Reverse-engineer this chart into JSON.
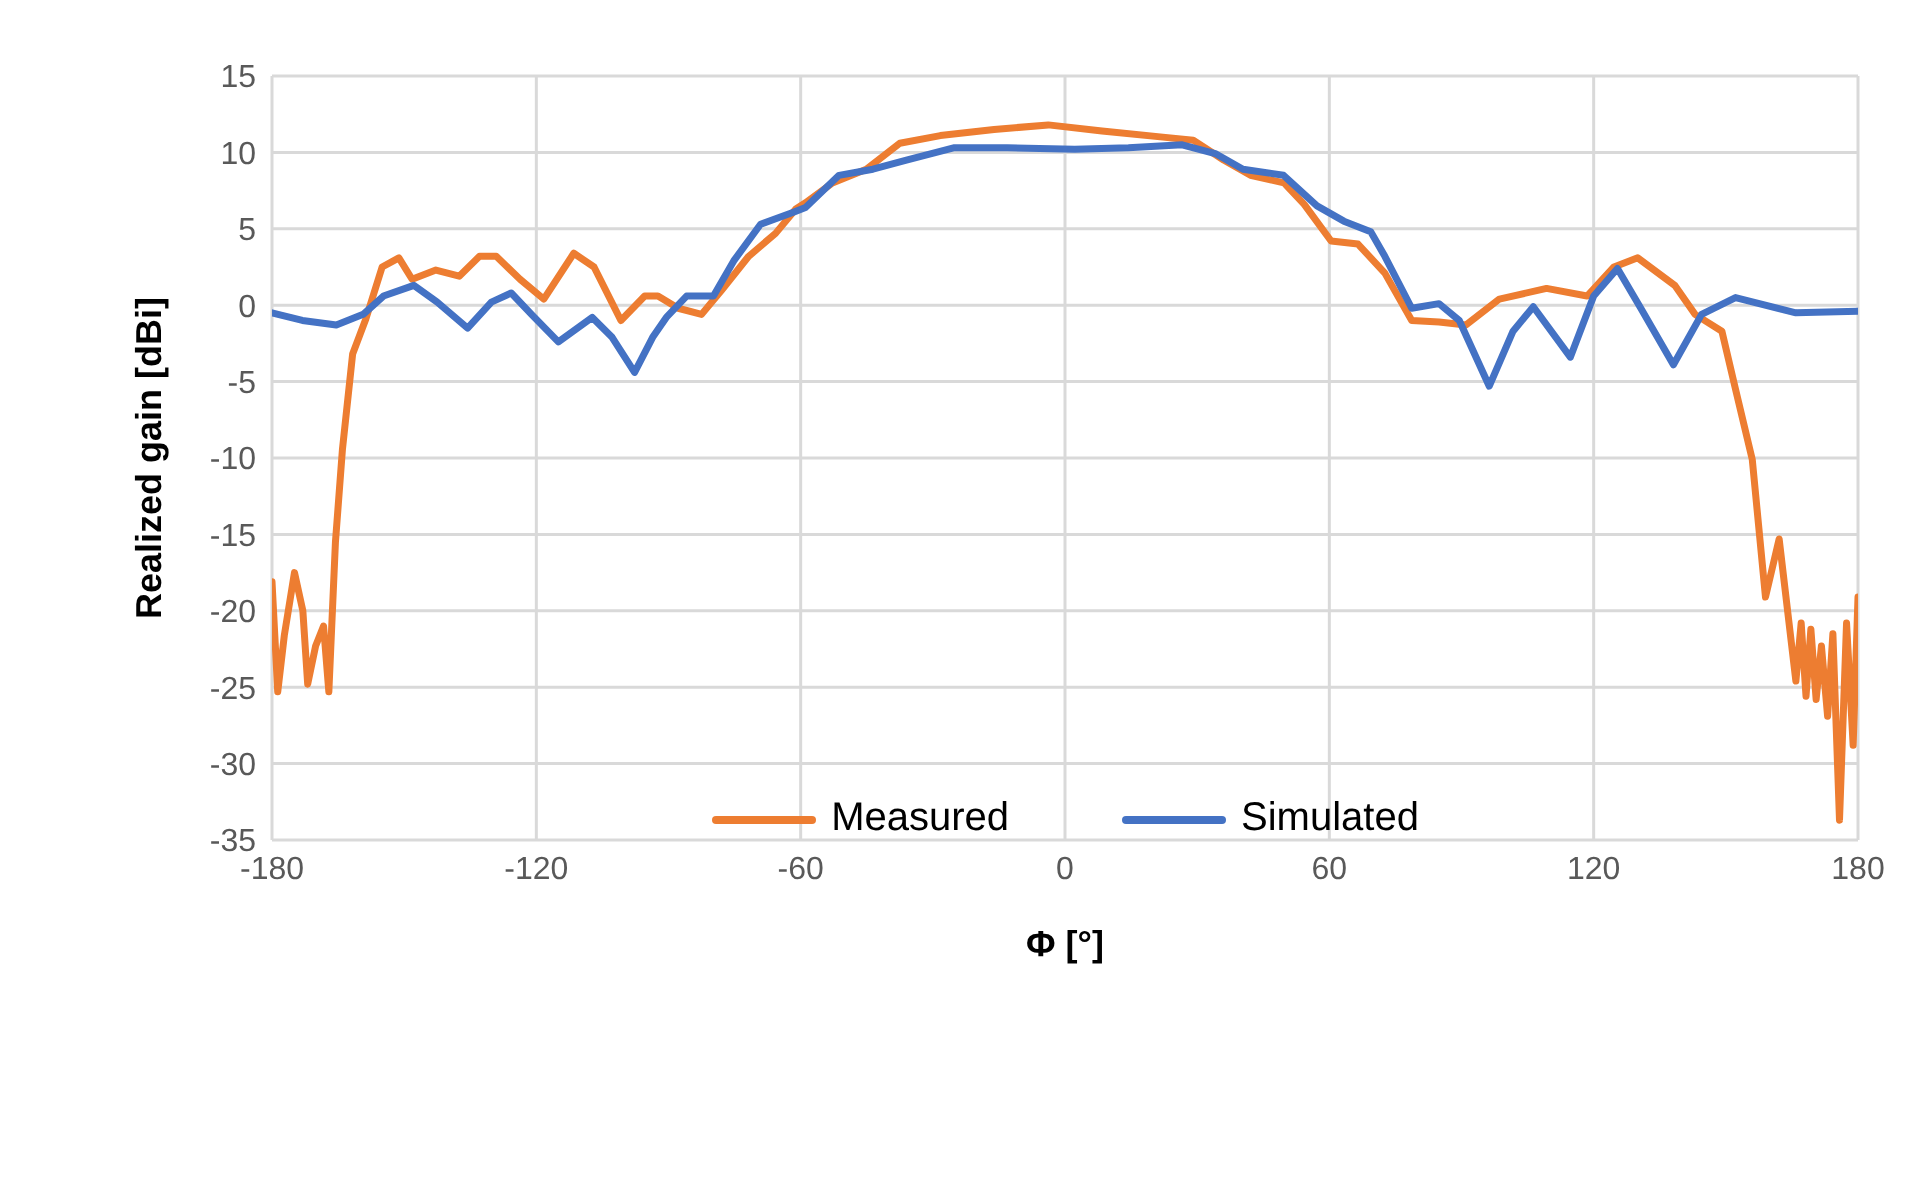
{
  "chart_data": {
    "type": "line",
    "xlabel": "Φ [°]",
    "ylabel": "Realized gain [dBi]",
    "xlim": [
      -180,
      180
    ],
    "xticks": [
      -180,
      -120,
      -60,
      0,
      60,
      120,
      180
    ],
    "ylim": [
      -35,
      15
    ],
    "yticks": [
      -35,
      -30,
      -25,
      -20,
      -15,
      -10,
      -5,
      0,
      5,
      10,
      15
    ],
    "grid": true,
    "legend": "bottom",
    "marker": "none",
    "line_style": "solid",
    "series": [
      {
        "name": "Measured",
        "color": "#ed7d31",
        "x": [
          -180,
          -178.7,
          -177.2,
          -174.9,
          -173,
          -171.9,
          -170.1,
          -168.3,
          -167.1,
          -165.6,
          -164,
          -161.7,
          -158.7,
          -155,
          -151.2,
          -148.2,
          -142.8,
          -137.5,
          -132.9,
          -129.1,
          -123.7,
          -118.3,
          -111.5,
          -106.9,
          -100.8,
          -95.4,
          -92.4,
          -87.8,
          -82.5,
          -77.9,
          -71.8,
          -65.7,
          -61.1,
          -58.9,
          -52.8,
          -45.1,
          -37.5,
          -28.3,
          -16.1,
          -3.8,
          8.4,
          22.2,
          29.1,
          36,
          42.1,
          49.7,
          54.3,
          60.4,
          66.5,
          72.6,
          78.7,
          84.9,
          91,
          98.6,
          109.3,
          118.5,
          124.6,
          130,
          138.4,
          143,
          149.1,
          152.2,
          156,
          159,
          162.1,
          165.9,
          167.1,
          168.2,
          169.3,
          170.5,
          171.7,
          173.1,
          174.3,
          175.8,
          177.4,
          178.9,
          180
        ],
        "values": [
          -18.1,
          -25.3,
          -21.6,
          -17.5,
          -20,
          -24.8,
          -22.3,
          -21,
          -25.3,
          -15.5,
          -9.4,
          -3.2,
          -0.9,
          2.5,
          3.1,
          1.7,
          2.3,
          1.9,
          3.2,
          3.2,
          1.7,
          0.4,
          3.4,
          2.5,
          -1,
          0.6,
          0.6,
          -0.2,
          -0.6,
          1,
          3.2,
          4.7,
          6.3,
          6.7,
          8,
          8.9,
          10.6,
          11.1,
          11.5,
          11.8,
          11.4,
          11,
          10.8,
          9.5,
          8.5,
          8,
          6.6,
          4.2,
          4,
          2.1,
          -1,
          -1.1,
          -1.3,
          0.4,
          1.1,
          0.6,
          2.5,
          3.1,
          1.3,
          -0.6,
          -1.7,
          -5.5,
          -10.1,
          -19.1,
          -15.3,
          -24.6,
          -20.8,
          -25.6,
          -21.2,
          -25.8,
          -22.3,
          -26.9,
          -21.5,
          -33.7,
          -20.8,
          -28.8,
          -19.1
        ]
      },
      {
        "name": "Simulated",
        "color": "#4472c4",
        "x": [
          -180,
          -173.1,
          -165.4,
          -159.3,
          -154.7,
          -147.8,
          -142.5,
          -135.6,
          -130.2,
          -125.7,
          -121.1,
          -115,
          -107.3,
          -102.8,
          -97.7,
          -93.6,
          -90.5,
          -85.9,
          -79.8,
          -75.2,
          -69.1,
          -61.5,
          -58.9,
          -51.3,
          -43.6,
          -36,
          -25.3,
          -13.1,
          2.2,
          14.4,
          26.6,
          34.3,
          40.4,
          49.6,
          57.2,
          63.3,
          69.4,
          72.6,
          78.7,
          84.9,
          89.5,
          96.3,
          101.7,
          106.3,
          114.7,
          120,
          125.4,
          130.7,
          138.1,
          144.5,
          152.2,
          165.9,
          180
        ],
        "values": [
          -0.5,
          -1,
          -1.3,
          -0.6,
          0.6,
          1.3,
          0.2,
          -1.5,
          0.2,
          0.8,
          -0.6,
          -2.4,
          -0.8,
          -2.1,
          -4.4,
          -2.1,
          -0.8,
          0.6,
          0.6,
          2.9,
          5.3,
          6.1,
          6.4,
          8.5,
          8.9,
          9.5,
          10.3,
          10.3,
          10.2,
          10.3,
          10.5,
          9.9,
          8.9,
          8.5,
          6.5,
          5.5,
          4.8,
          3.2,
          -0.2,
          0.1,
          -1,
          -5.3,
          -1.7,
          -0.1,
          -3.4,
          0.6,
          2.4,
          -0.2,
          -3.9,
          -0.6,
          0.5,
          -0.5,
          -0.4
        ]
      }
    ]
  }
}
